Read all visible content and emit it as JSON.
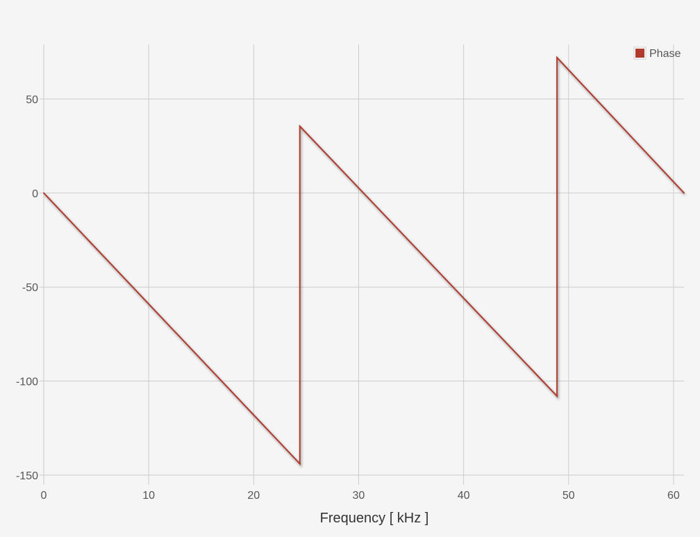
{
  "chart_data": {
    "type": "line",
    "title": "",
    "xlabel": "Frequency [ kHz ]",
    "ylabel": "",
    "xlim": [
      0,
      61
    ],
    "ylim": [
      -153,
      79
    ],
    "x_ticks": [
      0,
      10,
      20,
      30,
      40,
      50,
      60
    ],
    "y_ticks": [
      -150,
      -100,
      -50,
      0,
      50
    ],
    "grid": true,
    "legend_position": "top-right",
    "series": [
      {
        "name": "Phase",
        "color": "#b03a2e",
        "points": [
          [
            0,
            0
          ],
          [
            24.4,
            -144
          ],
          [
            24.4,
            35.5
          ],
          [
            48.9,
            -108
          ],
          [
            48.9,
            72
          ],
          [
            61,
            0
          ]
        ]
      }
    ]
  }
}
